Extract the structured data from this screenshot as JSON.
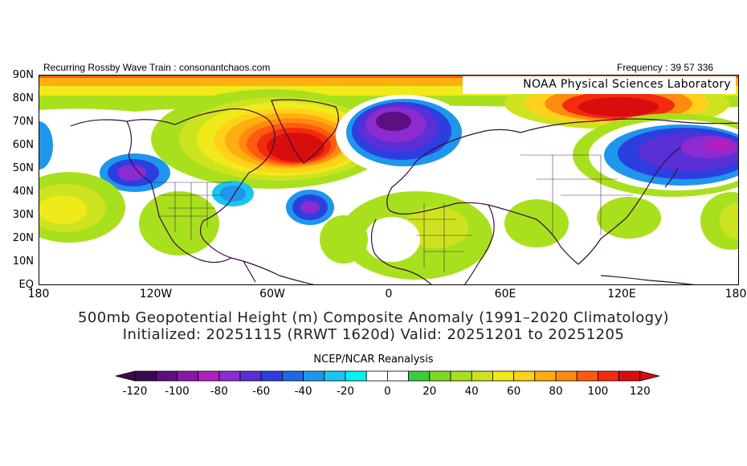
{
  "header": {
    "left_note": "Recurring Rossby Wave Train : consonantchaos.com",
    "right_note": "Frequency : 39 57 336",
    "lab_name": "NOAA Physical Sciences Laboratory"
  },
  "map": {
    "lat_labels": [
      "90N",
      "80N",
      "70N",
      "60N",
      "50N",
      "40N",
      "30N",
      "20N",
      "10N",
      "EQ"
    ],
    "lon_labels": [
      "180",
      "120W",
      "60W",
      "0",
      "60E",
      "120E",
      "180"
    ],
    "anomaly_features": [
      {
        "name": "ridge-greenland-canada",
        "sign": "positive",
        "peak": 120
      },
      {
        "name": "ridge-east-siberia",
        "sign": "positive",
        "peak": 120
      },
      {
        "name": "trough-scandinavia",
        "sign": "negative",
        "peak": -80
      },
      {
        "name": "trough-north-pacific",
        "sign": "negative",
        "peak": -80
      },
      {
        "name": "trough-mid-atlantic",
        "sign": "negative",
        "peak": -60
      },
      {
        "name": "trough-gulf-of-alaska",
        "sign": "negative",
        "peak": -60
      },
      {
        "name": "trough-northeast-us",
        "sign": "negative",
        "peak": -40
      }
    ]
  },
  "caption": {
    "line1": "500mb Geopotential Height (m) Composite Anomaly (1991–2020 Climatology)",
    "line2": "Initialized: 20251115 (RRWT 1620d) Valid: 20251201 to 20251205"
  },
  "colorbar": {
    "title": "NCEP/NCAR Reanalysis",
    "ticks": [
      "-120",
      "-100",
      "-80",
      "-60",
      "-40",
      "-20",
      "0",
      "20",
      "40",
      "60",
      "80",
      "100",
      "120"
    ],
    "colors": [
      "#3a0a4e",
      "#5c0f7e",
      "#8a17a6",
      "#b21fbf",
      "#8c2bcf",
      "#5a2fd6",
      "#2b3fe0",
      "#1f68e6",
      "#1e96ec",
      "#19c4f0",
      "#00f4f4",
      "#ffffff",
      "#ffffff",
      "#3ccc3c",
      "#7fd823",
      "#a9e01d",
      "#cde31f",
      "#f0ea1a",
      "#ffd11a",
      "#ffae10",
      "#ff8a10",
      "#ff5a10",
      "#f42a0e",
      "#d80e0e"
    ]
  }
}
